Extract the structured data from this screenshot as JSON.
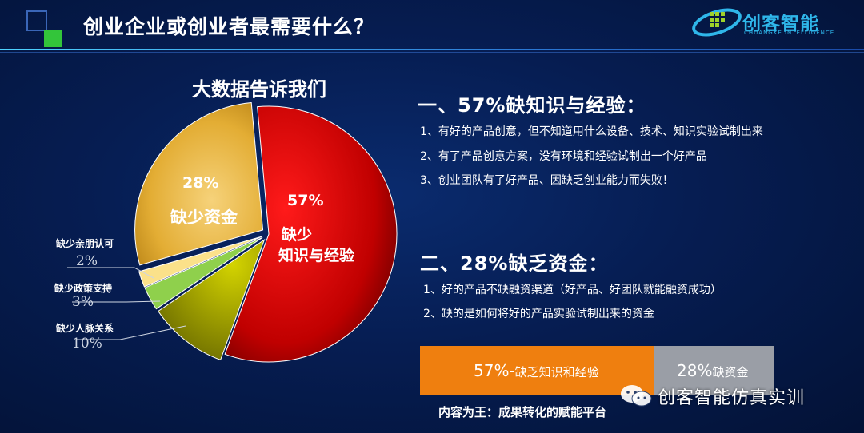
{
  "header": {
    "title": "创业企业或创业者最需要什么？",
    "logo_name": "创客智能",
    "logo_sub": "CHUANGKE INTELLIGENCE"
  },
  "chart_data": {
    "type": "pie",
    "title": "大数据告诉我们",
    "slices": [
      {
        "label_lines": [
          "缺少",
          "知识与经验"
        ],
        "pct_text": "57%",
        "value": 57,
        "color": "#d40000"
      },
      {
        "label": "缺少人脉关系",
        "pct_text": "10%",
        "value": 10,
        "color": "#a8a800"
      },
      {
        "label": "缺少政策支持",
        "pct_text": "3%",
        "value": 3,
        "color": "#8fd04c"
      },
      {
        "label": "缺少亲朋认可",
        "pct_text": "2%",
        "value": 2,
        "color": "#fbe18a"
      },
      {
        "label": "缺少资金",
        "pct_text": "28%",
        "value": 28,
        "color": "#e8b33a"
      }
    ]
  },
  "section1": {
    "title": "一、57%缺知识与经验：",
    "items": [
      "1、有好的产品创意，但不知道用什么设备、技术、知识实验试制出来",
      "2、有了产品创意方案，没有环境和经验试制出一个好产品",
      "3、创业团队有了好产品、因缺乏创业能力而失败！"
    ]
  },
  "section2": {
    "title": "二、28%缺乏资金：",
    "items": [
      "1、好的产品不缺融资渠道（好产品、好团队就能融资成功）",
      "2、缺的是如何将好的产品实验试制出来的资金"
    ]
  },
  "bar": {
    "orange_pct": "57%-",
    "orange_label": "缺乏知识和经验",
    "gray_pct": "28%",
    "gray_label": "缺资金"
  },
  "footer": {
    "tagline": "内容为王：成果转化的赋能平台",
    "watermark": "创客智能仿真实训"
  }
}
